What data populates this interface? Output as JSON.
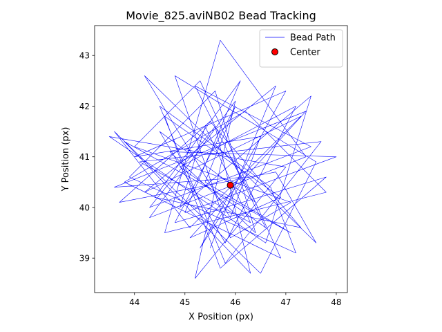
{
  "chart_data": {
    "type": "line",
    "title": "Movie_825.aviNB02 Bead Tracking",
    "xlabel": "X Position (px)",
    "ylabel": "Y Position (px)",
    "xlim": [
      43.21,
      48.22
    ],
    "ylim": [
      38.32,
      43.59
    ],
    "xticks": [
      44,
      45,
      46,
      47,
      48
    ],
    "yticks": [
      39,
      40,
      41,
      42,
      43
    ],
    "legend": "upper right",
    "series": [
      {
        "name": "Bead Path",
        "type": "line",
        "color": "#0000ff",
        "x": [
          45.5,
          46.8,
          44.2,
          47.3,
          45.1,
          43.6,
          46.5,
          47.6,
          44.8,
          45.9,
          47.1,
          44.0,
          45.3,
          46.9,
          43.8,
          46.2,
          47.8,
          44.6,
          45.7,
          47.4,
          44.3,
          46.0,
          45.2,
          47.0,
          43.5,
          46.6,
          47.5,
          44.9,
          45.4,
          46.3,
          44.1,
          47.7,
          45.8,
          44.5,
          46.7,
          47.2,
          43.9,
          45.6,
          46.4,
          44.7,
          48.0,
          45.0,
          46.1,
          44.4,
          47.3,
          45.5,
          43.7,
          46.8,
          47.6,
          44.2,
          45.9,
          46.5,
          44.0,
          47.0,
          45.3,
          46.2,
          43.6,
          47.4,
          45.1,
          46.9,
          44.6,
          45.7,
          47.8,
          44.8,
          46.0,
          45.4,
          47.1,
          43.8,
          46.3,
          45.6,
          44.3,
          47.5,
          45.2,
          46.6,
          44.9,
          47.2,
          45.8,
          44.5,
          46.4,
          45.9
        ],
        "y": [
          39.2,
          42.4,
          40.3,
          41.8,
          39.6,
          41.5,
          38.7,
          40.9,
          42.6,
          39.4,
          40.1,
          41.2,
          42.5,
          39.0,
          40.5,
          41.9,
          40.3,
          39.5,
          43.3,
          41.0,
          39.8,
          42.1,
          38.6,
          40.8,
          41.4,
          39.3,
          42.2,
          40.0,
          41.6,
          39.7,
          40.9,
          41.3,
          38.9,
          42.0,
          40.4,
          39.1,
          40.6,
          42.3,
          39.5,
          41.1,
          41.0,
          39.9,
          42.5,
          40.2,
          39.6,
          41.7,
          40.1,
          40.7,
          39.3,
          42.6,
          39.8,
          41.4,
          41.0,
          42.3,
          39.2,
          40.6,
          40.4,
          41.9,
          39.4,
          40.2,
          41.8,
          38.8,
          40.6,
          39.7,
          42.0,
          40.5,
          39.5,
          41.3,
          38.7,
          41.6,
          40.0,
          41.2,
          42.4,
          39.6,
          40.8,
          42.0,
          39.3,
          41.5,
          40.1,
          41.0
        ]
      },
      {
        "name": "Center",
        "type": "scatter",
        "color": "#ff0000",
        "x": [
          45.9
        ],
        "y": [
          40.44
        ]
      }
    ]
  }
}
